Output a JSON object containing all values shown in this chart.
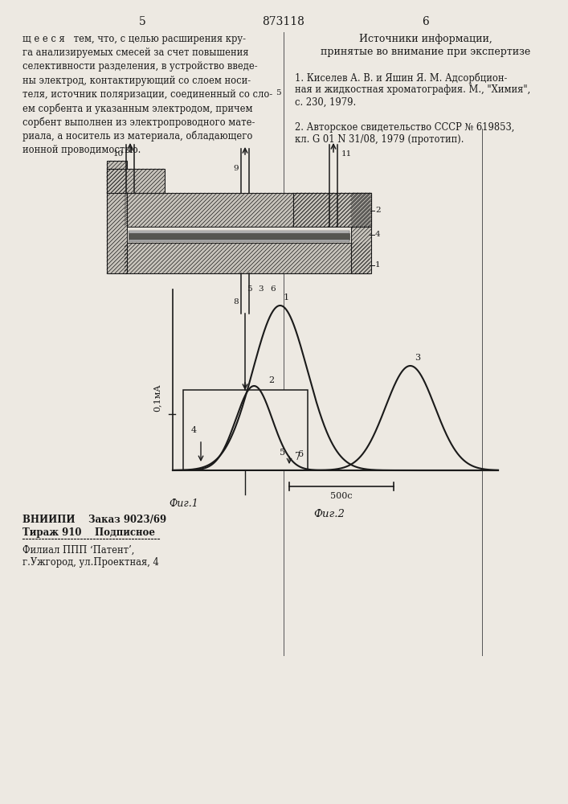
{
  "bg_color": "#ede9e2",
  "body_color": "#1a1a1a",
  "left_text_lines": [
    "щ е е с я   тем, что, с целью расширения кру-",
    "га анализируемых смесей за счет повышения",
    "селективности разделения, в устройство введе-",
    "ны электрод, контактирующий со слоем носи-",
    "теля, источник поляризации, соединенный со сло-",
    "ем сорбента и указанным электродом, причем",
    "сорбент выполнен из электропроводного мате-",
    "риала, а носитель из материала, обладающего",
    "ионной проводимостью."
  ],
  "right_header_line1": "Источники информации,",
  "right_header_line2": "принятые во внимание при экспертизе",
  "right_ref1_lines": [
    "1. Киселев А. В. и Яшин Я. М. Адсорбцион-",
    "ная и жидкостная хроматография. М., \"Химия\",",
    "с. 230, 1979."
  ],
  "right_ref2_lines": [
    "2. Авторское свидетельство СССР № 619853,",
    "кл. G 01 N 31/08, 1979 (прототип)."
  ],
  "footer_line1": "ВНИИПИ    Заказ 9023/69",
  "footer_line2": "Тираж 910    Подписное",
  "footer_line4": "Филиал ППП ‘Патент’,",
  "footer_line5": "г.Ужгород, ул.Проектная, 4",
  "fig1_label": "Фиг.1",
  "fig2_label": "Фиг.2",
  "y_axis_label": "0,1мА",
  "scale_label": "500с"
}
